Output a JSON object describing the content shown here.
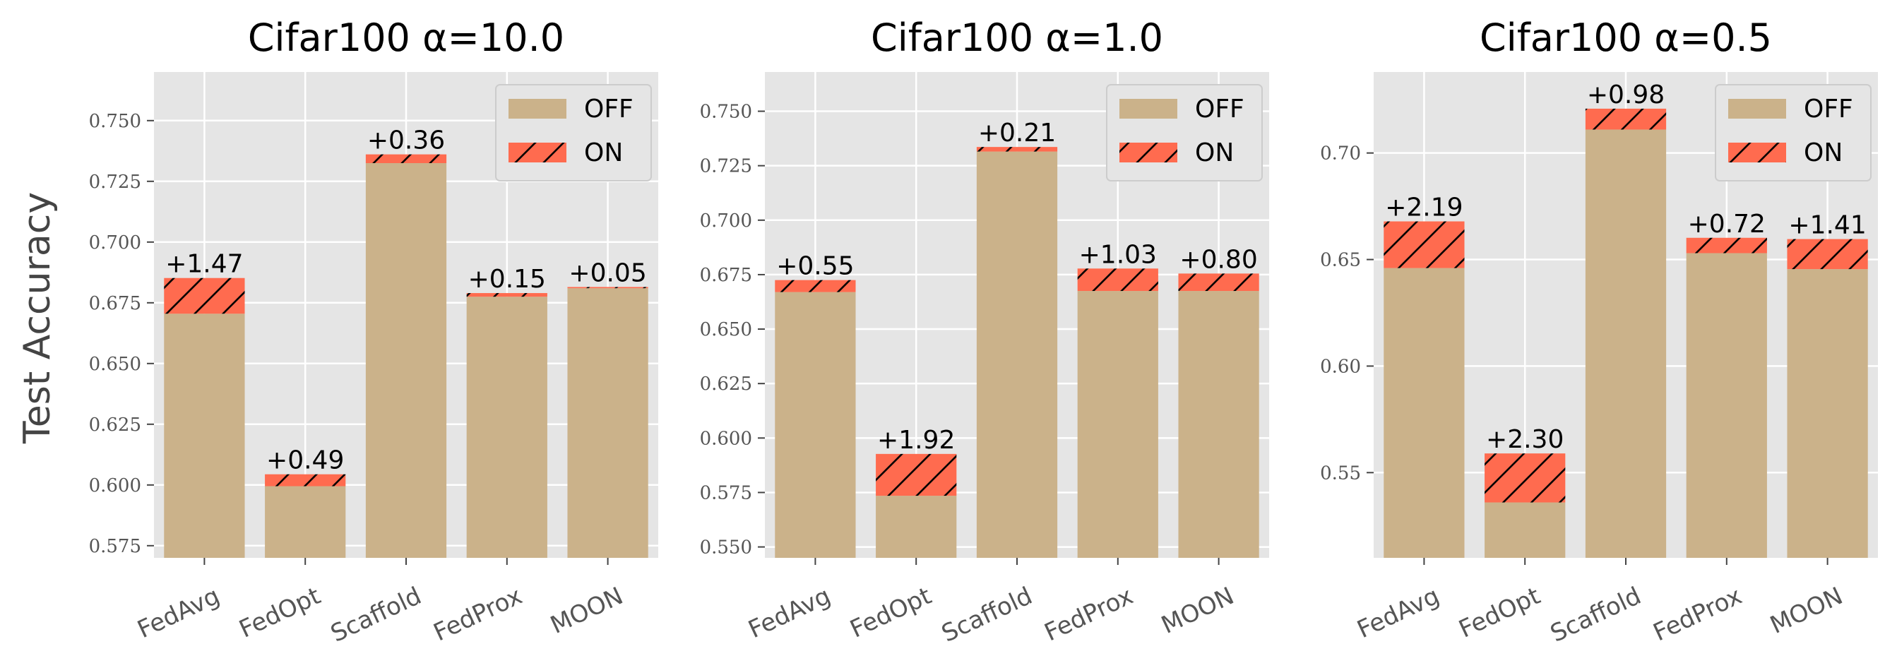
{
  "figure": {
    "ylabel": "Test Accuracy",
    "legend": {
      "labels": [
        "OFF",
        "ON"
      ],
      "placement": "top-right"
    },
    "colors": {
      "off": "#CBB28A",
      "on": "#FF6B4F",
      "panel_bg": "#E5E5E5",
      "grid": "#FFFFFF"
    }
  },
  "chart_data": [
    {
      "type": "bar",
      "title": "Cifar100 α=10.0",
      "categories": [
        "FedAvg",
        "FedOpt",
        "Scaffold",
        "FedProx",
        "MOON"
      ],
      "series": [
        {
          "name": "OFF",
          "values": [
            0.6705,
            0.5995,
            0.7325,
            0.6775,
            0.681
          ]
        },
        {
          "name": "ON",
          "values": [
            0.6852,
            0.6044,
            0.7361,
            0.679,
            0.6815
          ]
        }
      ],
      "annotations": [
        "+1.47",
        "+0.49",
        "+0.36",
        "+0.15",
        "+0.05"
      ],
      "ylim": [
        0.57,
        0.77
      ],
      "yticks": [
        "0.575",
        "0.600",
        "0.625",
        "0.650",
        "0.675",
        "0.700",
        "0.725",
        "0.750"
      ],
      "grid": true
    },
    {
      "type": "bar",
      "title": "Cifar100 α=1.0",
      "categories": [
        "FedAvg",
        "FedOpt",
        "Scaffold",
        "FedProx",
        "MOON"
      ],
      "series": [
        {
          "name": "OFF",
          "values": [
            0.667,
            0.5735,
            0.7315,
            0.6675,
            0.6675
          ]
        },
        {
          "name": "ON",
          "values": [
            0.6725,
            0.5927,
            0.7336,
            0.6778,
            0.6755
          ]
        }
      ],
      "annotations": [
        "+0.55",
        "+1.92",
        "+0.21",
        "+1.03",
        "+0.80"
      ],
      "ylim": [
        0.545,
        0.768
      ],
      "yticks": [
        "0.550",
        "0.575",
        "0.600",
        "0.625",
        "0.650",
        "0.675",
        "0.700",
        "0.725",
        "0.750"
      ],
      "grid": true
    },
    {
      "type": "bar",
      "title": "Cifar100 α=0.5",
      "categories": [
        "FedAvg",
        "FedOpt",
        "Scaffold",
        "FedProx",
        "MOON"
      ],
      "series": [
        {
          "name": "OFF",
          "values": [
            0.646,
            0.536,
            0.711,
            0.653,
            0.6455
          ]
        },
        {
          "name": "ON",
          "values": [
            0.6679,
            0.559,
            0.7208,
            0.6602,
            0.6596
          ]
        }
      ],
      "annotations": [
        "+2.19",
        "+2.30",
        "+0.98",
        "+0.72",
        "+1.41"
      ],
      "ylim": [
        0.51,
        0.738
      ],
      "yticks": [
        "0.55",
        "0.60",
        "0.65",
        "0.70"
      ],
      "grid": true
    }
  ]
}
